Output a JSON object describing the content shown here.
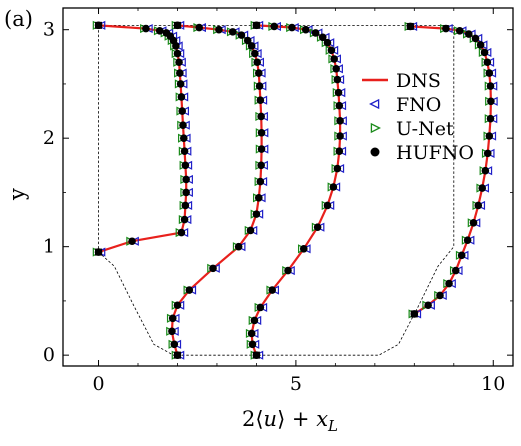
{
  "panel_label": "(a)",
  "chart_data": {
    "type": "line",
    "xlabel": "2⟨u⟩ + x_L",
    "ylabel": "y",
    "xlim": [
      -0.9,
      10.5
    ],
    "ylim": [
      -0.1,
      3.2
    ],
    "xticks": [
      0,
      5,
      10
    ],
    "yticks": [
      0,
      1,
      2,
      3
    ],
    "grid": false,
    "legend_position": "top-right",
    "legend": [
      "DNS",
      "FNO",
      "U-Net",
      "HUFNO"
    ],
    "styles": {
      "DNS": {
        "color": "#e8201c",
        "kind": "line"
      },
      "FNO": {
        "color": "#1f1fc8",
        "kind": "triangle-left"
      },
      "U-Net": {
        "color": "#1a8a1a",
        "kind": "triangle-right"
      },
      "HUFNO": {
        "color": "#000000",
        "kind": "circle"
      }
    },
    "domain_outline": [
      [
        0,
        0.95
      ],
      [
        0.4,
        0.82
      ],
      [
        0.9,
        0.45
      ],
      [
        1.4,
        0.1
      ],
      [
        1.9,
        0.0
      ],
      [
        7.1,
        0.0
      ],
      [
        7.6,
        0.1
      ],
      [
        8.1,
        0.45
      ],
      [
        8.6,
        0.82
      ],
      [
        9.0,
        1.0
      ],
      [
        9.0,
        3.04
      ],
      [
        0,
        3.04
      ],
      [
        0,
        0.95
      ]
    ],
    "profiles": [
      {
        "x": [
          0.0,
          0.85,
          2.1,
          2.18,
          2.2,
          2.22,
          2.22,
          2.2,
          2.18,
          2.16,
          2.14,
          2.12,
          2.1,
          2.08,
          2.06,
          2.04,
          2.0,
          1.96,
          1.9,
          1.82,
          1.72,
          1.55,
          1.2,
          0.0
        ],
        "y": [
          0.95,
          1.05,
          1.13,
          1.25,
          1.38,
          1.5,
          1.62,
          1.75,
          1.88,
          2.0,
          2.12,
          2.25,
          2.38,
          2.5,
          2.6,
          2.7,
          2.78,
          2.85,
          2.9,
          2.94,
          2.97,
          2.99,
          3.01,
          3.04
        ]
      },
      {
        "x": [
          2.0,
          1.92,
          1.86,
          1.88,
          2.0,
          2.3,
          2.9,
          3.55,
          3.85,
          4.0,
          4.06,
          4.1,
          4.12,
          4.13,
          4.13,
          4.12,
          4.1,
          4.08,
          4.06,
          4.02,
          3.96,
          3.88,
          3.78,
          3.62,
          3.4,
          3.05,
          2.55,
          2.0
        ],
        "y": [
          0.0,
          0.1,
          0.22,
          0.34,
          0.46,
          0.6,
          0.8,
          1.0,
          1.15,
          1.3,
          1.45,
          1.6,
          1.75,
          1.9,
          2.05,
          2.2,
          2.35,
          2.48,
          2.6,
          2.7,
          2.78,
          2.85,
          2.9,
          2.95,
          2.98,
          3.0,
          3.02,
          3.04
        ]
      },
      {
        "x": [
          4.0,
          3.9,
          3.88,
          3.95,
          4.1,
          4.4,
          4.8,
          5.2,
          5.55,
          5.8,
          5.95,
          6.05,
          6.1,
          6.12,
          6.12,
          6.1,
          6.08,
          6.05,
          6.02,
          5.97,
          5.9,
          5.8,
          5.68,
          5.5,
          5.25,
          4.9,
          4.45,
          4.0
        ],
        "y": [
          0.0,
          0.1,
          0.2,
          0.32,
          0.44,
          0.6,
          0.78,
          0.98,
          1.18,
          1.38,
          1.55,
          1.72,
          1.88,
          2.02,
          2.16,
          2.3,
          2.42,
          2.54,
          2.64,
          2.73,
          2.81,
          2.88,
          2.93,
          2.97,
          3.0,
          3.02,
          3.03,
          3.04
        ]
      },
      {
        "x": [
          8.0,
          8.35,
          8.65,
          8.88,
          9.05,
          9.2,
          9.35,
          9.5,
          9.62,
          9.72,
          9.8,
          9.86,
          9.9,
          9.93,
          9.94,
          9.93,
          9.9,
          9.85,
          9.78,
          9.68,
          9.55,
          9.38,
          9.15,
          8.8,
          7.9
        ],
        "y": [
          0.38,
          0.46,
          0.55,
          0.66,
          0.78,
          0.92,
          1.06,
          1.22,
          1.38,
          1.54,
          1.7,
          1.86,
          2.02,
          2.18,
          2.34,
          2.48,
          2.6,
          2.7,
          2.79,
          2.86,
          2.92,
          2.96,
          2.99,
          3.01,
          3.03
        ]
      }
    ]
  }
}
